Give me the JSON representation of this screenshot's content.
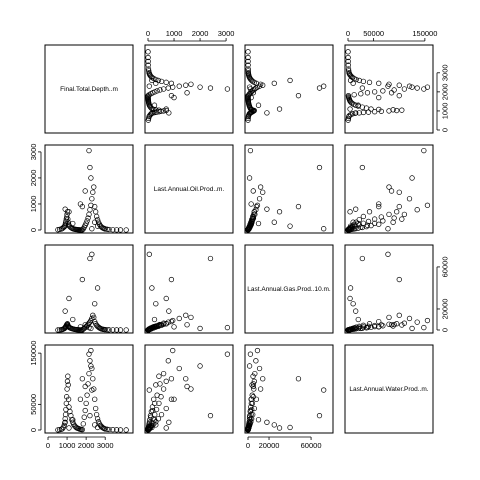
{
  "chart_data": {
    "type": "scatter",
    "title": "",
    "variables": [
      {
        "name": "Final.Total.Depth..m",
        "range": [
          0,
          4300
        ],
        "ticks": [
          0,
          1000,
          2000,
          3000
        ],
        "tick_labels": [
          "0",
          "1000",
          "2000",
          "3000"
        ]
      },
      {
        "name": "Last.Annual.Oil.Prod..m.",
        "range": [
          0,
          3150
        ],
        "ticks": [
          0,
          1000,
          2000,
          3000
        ],
        "tick_labels": [
          "0",
          "1000",
          "2000",
          "3000"
        ]
      },
      {
        "name": "Last.Annual.Gas.Prod..10.m.",
        "range": [
          0,
          78000
        ],
        "ticks": [
          0,
          20000,
          60000
        ],
        "tick_labels": [
          "0",
          "20000",
          "60000"
        ]
      },
      {
        "name": "Last.Annual.Water.Prod..m.",
        "range": [
          0,
          160000
        ],
        "ticks": [
          0,
          50000,
          150000
        ],
        "tick_labels": [
          "0",
          "50000",
          "150000"
        ]
      }
    ],
    "points": [
      [
        520,
        12,
        50,
        300
      ],
      [
        610,
        25,
        120,
        800
      ],
      [
        700,
        40,
        300,
        1500
      ],
      [
        750,
        60,
        500,
        2500
      ],
      [
        800,
        90,
        900,
        5000
      ],
      [
        850,
        120,
        1300,
        9000
      ],
      [
        880,
        150,
        1800,
        14000
      ],
      [
        900,
        200,
        2500,
        22000
      ],
      [
        920,
        260,
        3000,
        30000
      ],
      [
        940,
        330,
        3500,
        40000
      ],
      [
        960,
        420,
        4200,
        52000
      ],
      [
        980,
        500,
        5000,
        65000
      ],
      [
        1000,
        600,
        5500,
        80000
      ],
      [
        1020,
        700,
        6000,
        95000
      ],
      [
        1040,
        420,
        4800,
        105000
      ],
      [
        1060,
        300,
        3800,
        88000
      ],
      [
        1080,
        220,
        3200,
        60000
      ],
      [
        1100,
        170,
        2600,
        45000
      ],
      [
        1150,
        130,
        2100,
        36000
      ],
      [
        1200,
        95,
        1700,
        28000
      ],
      [
        1250,
        70,
        1400,
        20000
      ],
      [
        1300,
        55,
        1100,
        15000
      ],
      [
        1350,
        40,
        800,
        11000
      ],
      [
        1400,
        30,
        600,
        8000
      ],
      [
        1450,
        22,
        450,
        6000
      ],
      [
        1500,
        18,
        350,
        4500
      ],
      [
        1550,
        14,
        280,
        3500
      ],
      [
        1600,
        10,
        200,
        2800
      ],
      [
        1650,
        8,
        150,
        2000
      ],
      [
        1700,
        6,
        110,
        1500
      ],
      [
        1750,
        5,
        80,
        1100
      ],
      [
        1800,
        4,
        60,
        800
      ],
      [
        1850,
        45,
        900,
        12000
      ],
      [
        1900,
        110,
        1500,
        25000
      ],
      [
        1950,
        180,
        2400,
        38000
      ],
      [
        2000,
        260,
        3200,
        52000
      ],
      [
        2050,
        350,
        4000,
        68000
      ],
      [
        2100,
        460,
        5200,
        90000
      ],
      [
        2150,
        600,
        6500,
        110000
      ],
      [
        2200,
        780,
        7500,
        135000
      ],
      [
        2250,
        950,
        9000,
        155000
      ],
      [
        2300,
        1200,
        11000,
        120000
      ],
      [
        2350,
        1450,
        14000,
        100000
      ],
      [
        2400,
        1650,
        12000,
        80000
      ],
      [
        2450,
        900,
        8000,
        60000
      ],
      [
        2500,
        700,
        6000,
        42000
      ],
      [
        2550,
        520,
        4500,
        30000
      ],
      [
        2600,
        400,
        3500,
        22000
      ],
      [
        2650,
        300,
        2700,
        16000
      ],
      [
        2700,
        220,
        2000,
        12000
      ],
      [
        2750,
        160,
        1500,
        9000
      ],
      [
        2800,
        120,
        1100,
        7000
      ],
      [
        2850,
        90,
        800,
        5000
      ],
      [
        2900,
        70,
        600,
        3800
      ],
      [
        2950,
        55,
        450,
        2800
      ],
      [
        3000,
        40,
        330,
        2000
      ],
      [
        3100,
        28,
        240,
        1400
      ],
      [
        3200,
        18,
        170,
        1000
      ],
      [
        3400,
        10,
        110,
        700
      ],
      [
        3600,
        6,
        70,
        400
      ],
      [
        3800,
        3,
        40,
        200
      ],
      [
        4100,
        1,
        20,
        100
      ],
      [
        2150,
        3050,
        2300,
        148000
      ],
      [
        2200,
        2400,
        68000,
        28000
      ],
      [
        2250,
        2000,
        1500,
        125000
      ],
      [
        1800,
        900,
        48000,
        100000
      ],
      [
        2300,
        50,
        72000,
        78000
      ],
      [
        1950,
        1500,
        5000,
        85000
      ],
      [
        1700,
        1000,
        3000,
        60000
      ],
      [
        1100,
        700,
        30000,
        4000
      ],
      [
        1300,
        250,
        10000,
        20000
      ],
      [
        900,
        800,
        18000,
        15000
      ],
      [
        2450,
        300,
        25000,
        10000
      ],
      [
        2600,
        150,
        40000,
        5000
      ]
    ]
  }
}
